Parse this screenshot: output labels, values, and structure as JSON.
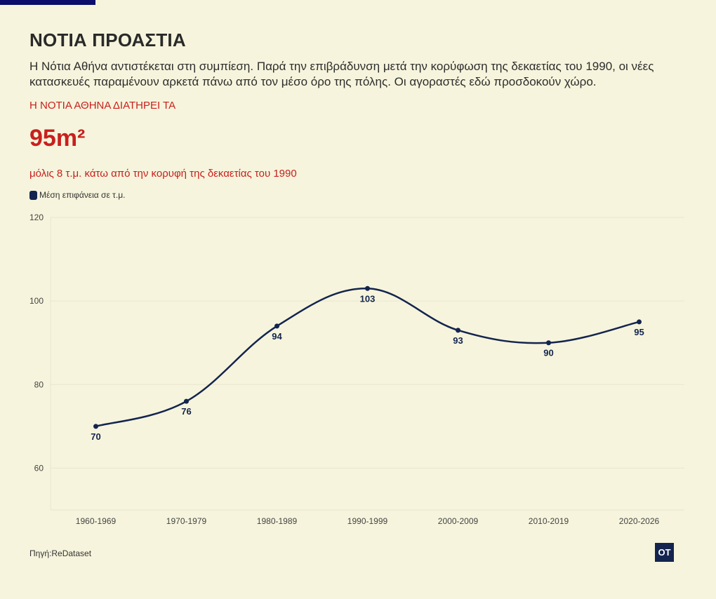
{
  "header": {
    "title": "ΝΟΤΙΑ ΠΡΟΑΣΤΙΑ",
    "description": "Η Νότια Αθήνα αντιστέκεται στη συμπίεση. Παρά την επιβράδυνση μετά την κορύφωση της δεκαετίας του 1990, οι νέες κατασκευές παραμένουν αρκετά πάνω από τον μέσο όρο της πόλης. Οι αγοραστές εδώ προσδοκούν χώρο.",
    "kicker": "Η ΝΟΤΙΑ ΑΘΗΝΑ ΔΙΑΤΗΡΕΙ ΤΑ",
    "big_number": "95m²",
    "note": "μόλις 8 τ.μ. κάτω από την κορυφή της δεκαετίας του 1990"
  },
  "footer": {
    "source": "Πηγή:ReDataset",
    "logo": "OT"
  },
  "colors": {
    "line": "#13244f",
    "accent": "#c8201e",
    "background": "#f6f4dc",
    "grid": "#e9e6cf"
  },
  "chart_data": {
    "type": "line",
    "title": "ΝΟΤΙΑ ΠΡΟΑΣΤΙΑ",
    "categories": [
      "1960-1969",
      "1970-1979",
      "1980-1989",
      "1990-1999",
      "2000-2009",
      "2010-2019",
      "2020-2026"
    ],
    "series": [
      {
        "name": "Μέση επιφάνεια σε τ.μ.",
        "values": [
          70,
          76,
          94,
          103,
          93,
          90,
          95
        ],
        "labels": [
          "70",
          "76",
          "94",
          "103",
          "93",
          "90",
          "95"
        ]
      }
    ],
    "ylim": [
      50,
      120
    ],
    "yticks": [
      60,
      80,
      100,
      120
    ],
    "ytick_labels": [
      "60",
      "80",
      "100",
      "120"
    ],
    "xlabel": "",
    "ylabel": "",
    "grid": true,
    "legend": "top-left",
    "smooth": true
  }
}
